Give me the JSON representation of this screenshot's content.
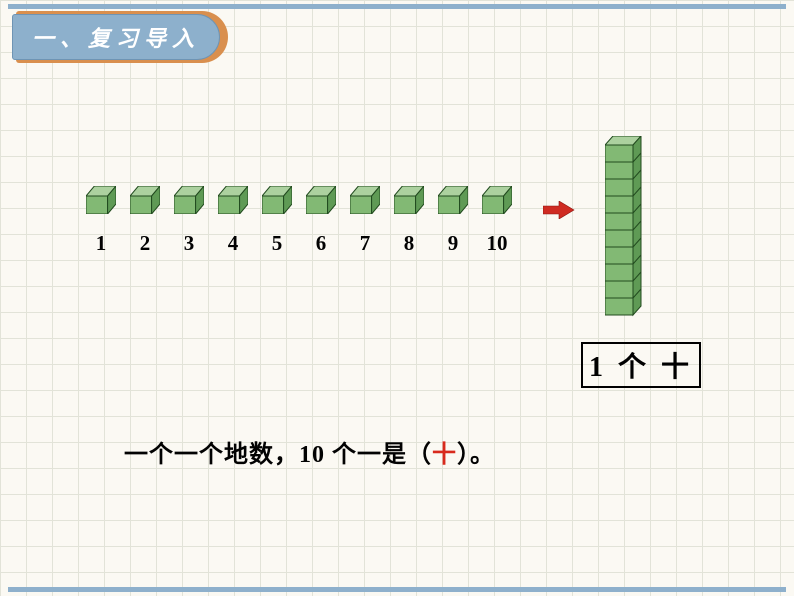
{
  "colors": {
    "bg": "#fbf9f3",
    "grid": "#e2e3d8",
    "bar": "#8eb0cc",
    "tab_shadow": "#d98f4e",
    "tab_fill": "#8db0cc",
    "tab_border": "#6e94b4",
    "text": "#020202",
    "answer": "#d82a1d",
    "cube_top": "#acd19f",
    "cube_front": "#82b974",
    "cube_side": "#5f9a55",
    "cube_edge": "#214a1e",
    "arrow": "#cf2b22",
    "label_border": "#000000"
  },
  "header": {
    "title": "一、复习导入"
  },
  "cubes": {
    "count": 10,
    "numbers": [
      "1",
      "2",
      "3",
      "4",
      "5",
      "6",
      "7",
      "8",
      "9",
      "10"
    ]
  },
  "stack": {
    "count": 10
  },
  "label": {
    "text": "1 个 十"
  },
  "sentence": {
    "before": "一个一个地数，10 个一是（",
    "answer": "十",
    "after": "）。"
  }
}
